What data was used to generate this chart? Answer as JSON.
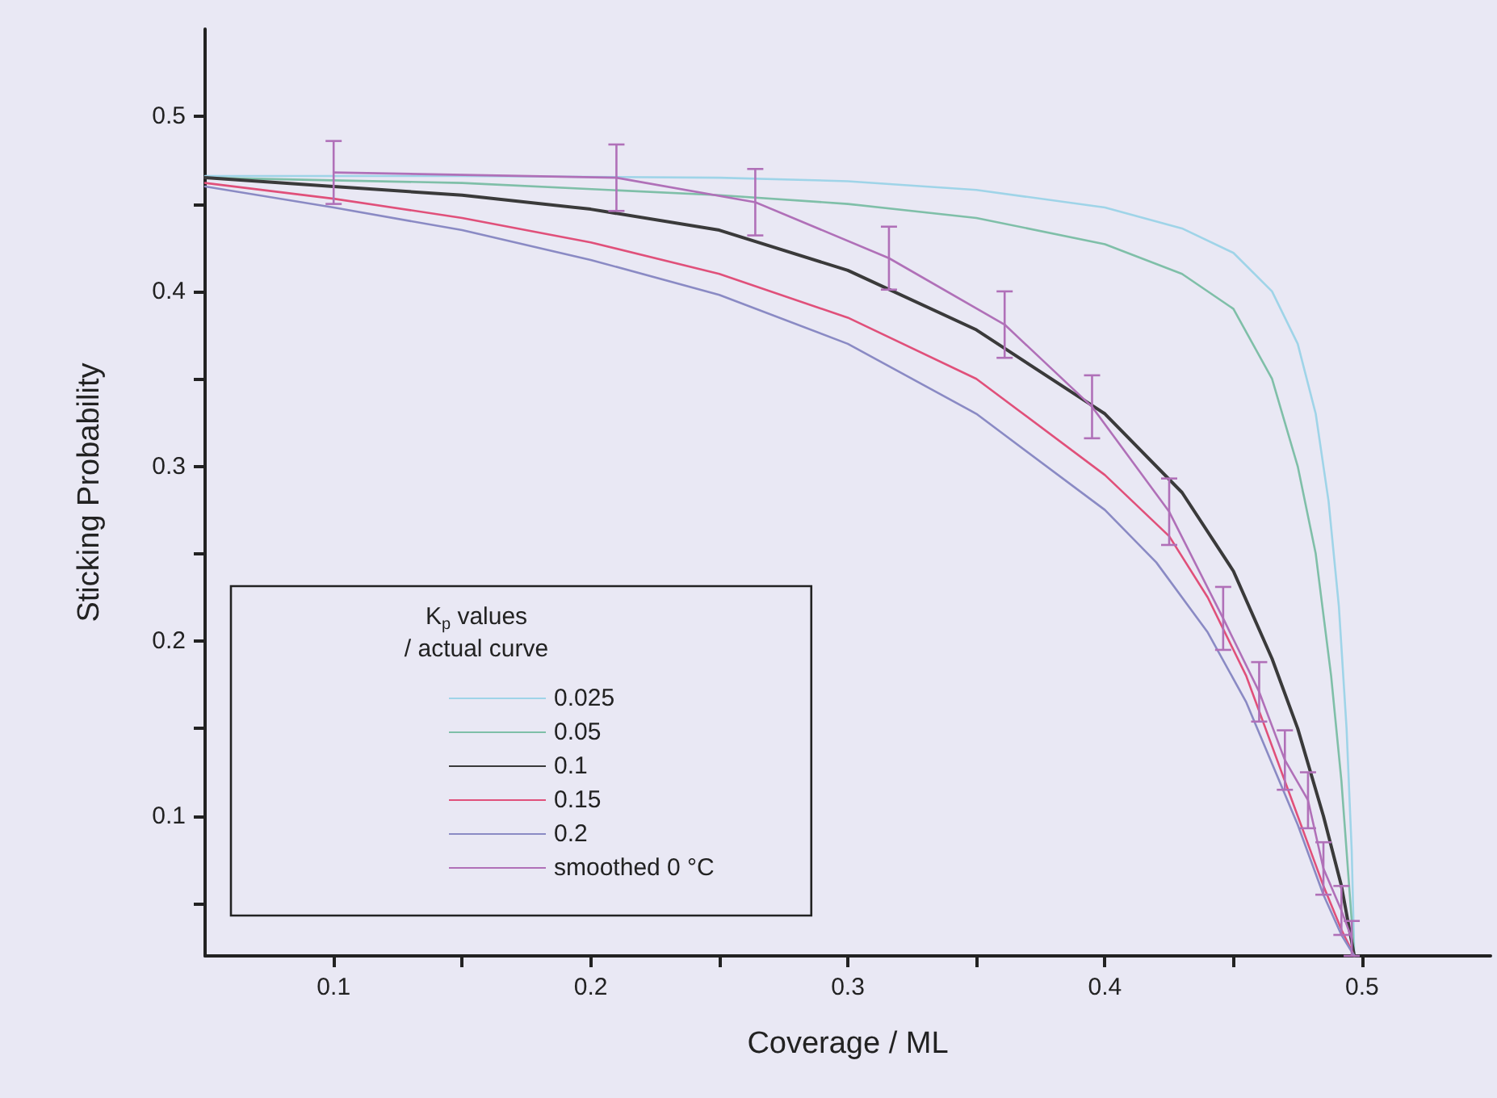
{
  "chart_data": {
    "type": "line",
    "xlabel": "Coverage / ML",
    "ylabel": "Sticking Probability",
    "legend_title": "K$_{p}$ values\n/ actual curve",
    "legend": "bottom left",
    "grid": false,
    "marker": "none",
    "line_style": "solid",
    "xlim": [
      0.05,
      0.55
    ],
    "ylim": [
      0.02,
      0.55
    ],
    "xticks": [
      0.1,
      {
        "value": 0.15,
        "label": null
      },
      0.2,
      {
        "value": 0.25,
        "label": null
      },
      0.3,
      {
        "value": 0.35,
        "label": null
      },
      0.4,
      {
        "value": 0.45,
        "label": null
      },
      0.5
    ],
    "yticks": [
      {
        "value": 0.05,
        "label": null
      },
      0.1,
      {
        "value": 0.15,
        "label": null
      },
      0.2,
      {
        "value": 0.25,
        "label": null
      },
      0.3,
      {
        "value": 0.35,
        "label": null
      },
      0.4,
      {
        "value": 0.45,
        "label": null
      },
      0.5
    ],
    "series": [
      {
        "name": "0.025",
        "color": "#9fd4e8",
        "x": [
          0.05,
          0.15,
          0.25,
          0.3,
          0.35,
          0.4,
          0.43,
          0.45,
          0.465,
          0.475,
          0.482,
          0.487,
          0.491,
          0.494,
          0.496,
          0.497
        ],
        "values": [
          0.466,
          0.466,
          0.465,
          0.463,
          0.458,
          0.448,
          0.436,
          0.422,
          0.4,
          0.37,
          0.33,
          0.28,
          0.22,
          0.15,
          0.08,
          0.02
        ]
      },
      {
        "name": "0.05",
        "color": "#7fbfa8",
        "x": [
          0.05,
          0.15,
          0.25,
          0.3,
          0.35,
          0.4,
          0.43,
          0.45,
          0.465,
          0.475,
          0.482,
          0.488,
          0.492,
          0.495,
          0.497
        ],
        "values": [
          0.465,
          0.462,
          0.455,
          0.45,
          0.442,
          0.427,
          0.41,
          0.39,
          0.35,
          0.3,
          0.25,
          0.18,
          0.12,
          0.06,
          0.02
        ]
      },
      {
        "name": "0.1",
        "color": "#3a3a3a",
        "x": [
          0.05,
          0.1,
          0.15,
          0.2,
          0.25,
          0.3,
          0.35,
          0.4,
          0.43,
          0.45,
          0.465,
          0.475,
          0.485,
          0.492,
          0.497
        ],
        "values": [
          0.465,
          0.46,
          0.455,
          0.447,
          0.435,
          0.412,
          0.378,
          0.33,
          0.285,
          0.24,
          0.19,
          0.15,
          0.1,
          0.06,
          0.02
        ]
      },
      {
        "name": "0.15",
        "color": "#e0507a",
        "x": [
          0.05,
          0.1,
          0.15,
          0.2,
          0.25,
          0.3,
          0.35,
          0.4,
          0.425,
          0.44,
          0.455,
          0.465,
          0.475,
          0.485,
          0.492,
          0.497
        ],
        "values": [
          0.462,
          0.453,
          0.442,
          0.428,
          0.41,
          0.385,
          0.35,
          0.295,
          0.26,
          0.225,
          0.18,
          0.14,
          0.1,
          0.06,
          0.035,
          0.02
        ]
      },
      {
        "name": "0.2",
        "color": "#8a8ac4",
        "x": [
          0.05,
          0.1,
          0.15,
          0.2,
          0.25,
          0.3,
          0.35,
          0.4,
          0.42,
          0.44,
          0.455,
          0.465,
          0.475,
          0.485,
          0.492,
          0.497
        ],
        "values": [
          0.46,
          0.448,
          0.435,
          0.418,
          0.398,
          0.37,
          0.33,
          0.275,
          0.245,
          0.205,
          0.165,
          0.13,
          0.095,
          0.055,
          0.032,
          0.02
        ]
      },
      {
        "name": "smoothed 0 °C",
        "color": "#b070b8",
        "x": [
          0.1,
          0.21,
          0.264,
          0.316,
          0.361,
          0.395,
          0.425,
          0.446,
          0.46,
          0.47,
          0.479,
          0.485,
          0.492,
          0.496
        ],
        "values": [
          0.468,
          0.465,
          0.451,
          0.419,
          0.381,
          0.334,
          0.274,
          0.213,
          0.171,
          0.132,
          0.109,
          0.07,
          0.046,
          0.03
        ],
        "errors": [
          0.018,
          0.019,
          0.019,
          0.018,
          0.019,
          0.018,
          0.019,
          0.018,
          0.017,
          0.017,
          0.016,
          0.015,
          0.014,
          0.01
        ]
      }
    ]
  }
}
